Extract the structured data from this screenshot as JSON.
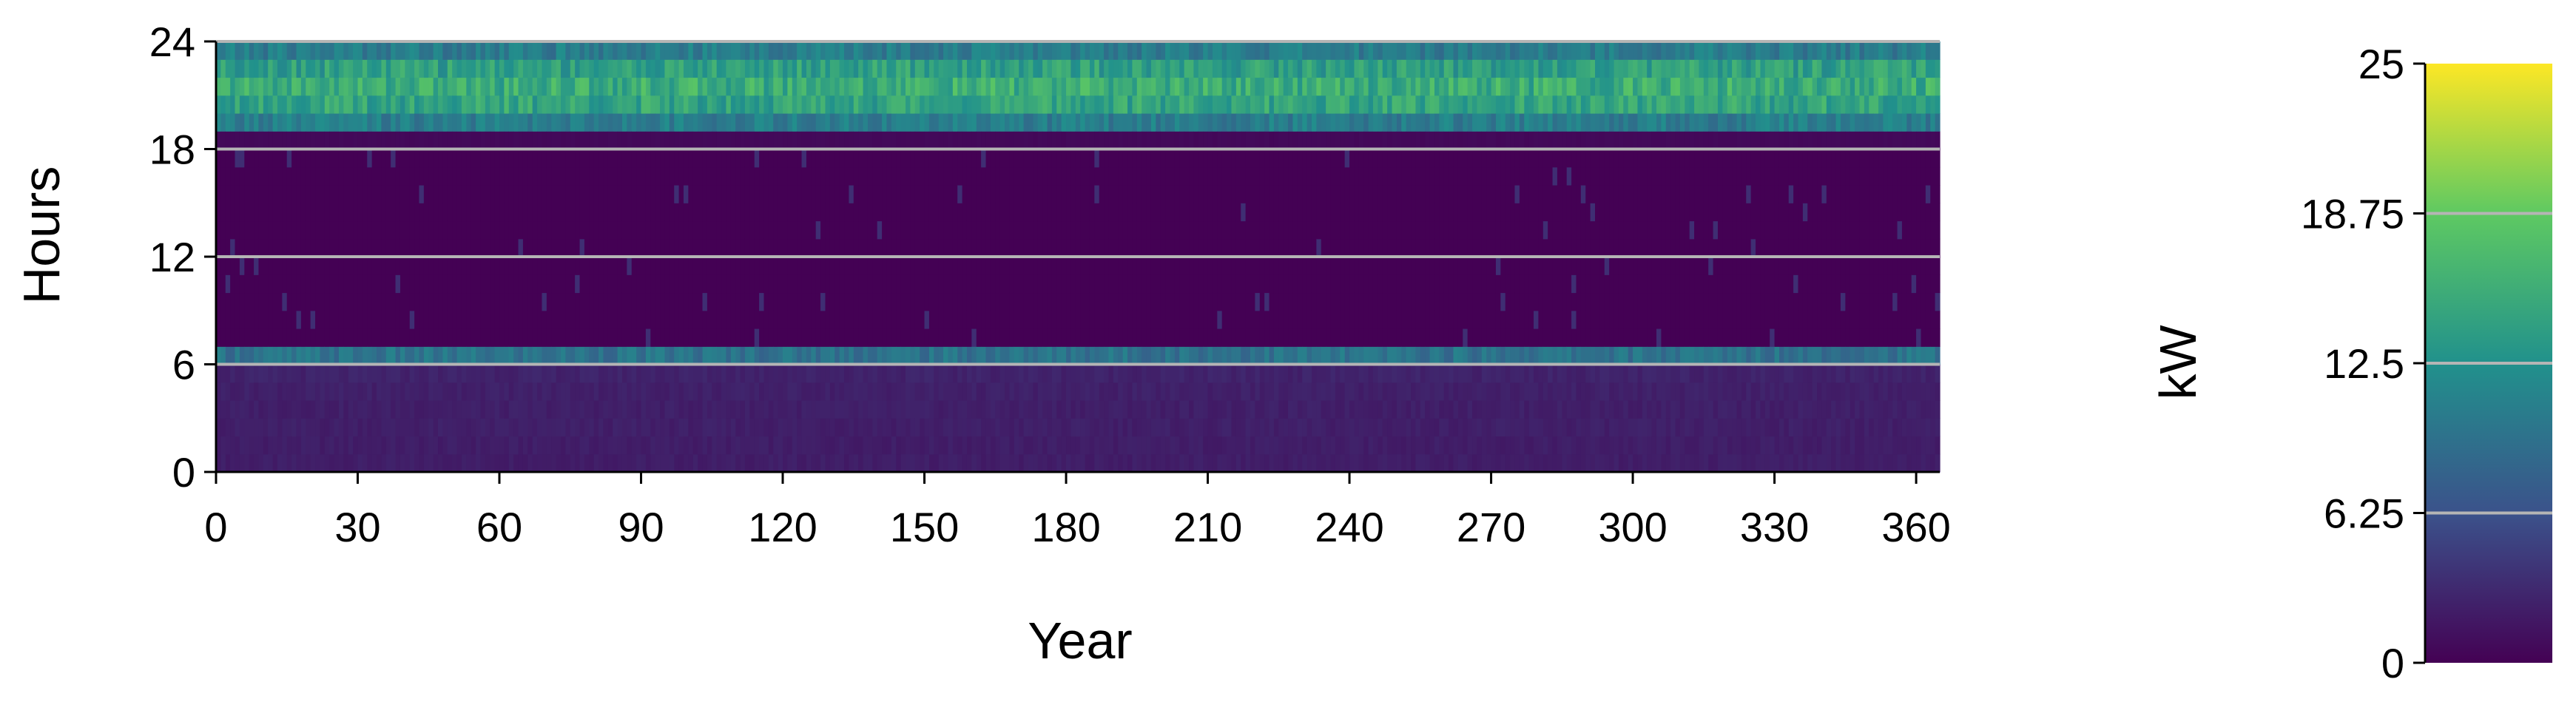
{
  "chart_data": {
    "type": "heatmap",
    "x_axis": {
      "label": "Year",
      "range": [
        0,
        365
      ],
      "ticks": [
        0,
        30,
        60,
        90,
        120,
        150,
        180,
        210,
        240,
        270,
        300,
        330,
        360
      ]
    },
    "y_axis": {
      "label": "Hours",
      "range": [
        0,
        24
      ],
      "ticks": [
        0,
        6,
        12,
        18,
        24
      ]
    },
    "grid": {
      "horizontal_lines_at_hours": [
        6,
        12,
        18,
        24
      ]
    },
    "colorbar": {
      "label": "kW",
      "range": [
        0,
        25
      ],
      "ticks": [
        "0",
        "6.25",
        "12.5",
        "18.75",
        "25"
      ],
      "colormap": "viridis",
      "colors": [
        "#440154",
        "#3b528b",
        "#21918c",
        "#5ec962",
        "#fde725"
      ],
      "placement": "right"
    },
    "hourly_profile_kw": [
      {
        "hour": 0,
        "kw": 2.2
      },
      {
        "hour": 1,
        "kw": 2.2
      },
      {
        "hour": 2,
        "kw": 2.3
      },
      {
        "hour": 3,
        "kw": 2.3
      },
      {
        "hour": 4,
        "kw": 2.4
      },
      {
        "hour": 5,
        "kw": 2.6
      },
      {
        "hour": 6,
        "kw": 9.5
      },
      {
        "hour": 7,
        "kw": 0.0
      },
      {
        "hour": 8,
        "kw": 0.0
      },
      {
        "hour": 9,
        "kw": 0.0
      },
      {
        "hour": 10,
        "kw": 0.0
      },
      {
        "hour": 11,
        "kw": 0.0
      },
      {
        "hour": 12,
        "kw": 0.0
      },
      {
        "hour": 13,
        "kw": 0.0
      },
      {
        "hour": 14,
        "kw": 0.0
      },
      {
        "hour": 15,
        "kw": 0.0
      },
      {
        "hour": 16,
        "kw": 0.0
      },
      {
        "hour": 17,
        "kw": 0.0
      },
      {
        "hour": 18,
        "kw": 0.6
      },
      {
        "hour": 19,
        "kw": 10.5
      },
      {
        "hour": 20,
        "kw": 14.5
      },
      {
        "hour": 21,
        "kw": 15.5
      },
      {
        "hour": 22,
        "kw": 14.0
      },
      {
        "hour": 23,
        "kw": 10.5
      }
    ]
  }
}
